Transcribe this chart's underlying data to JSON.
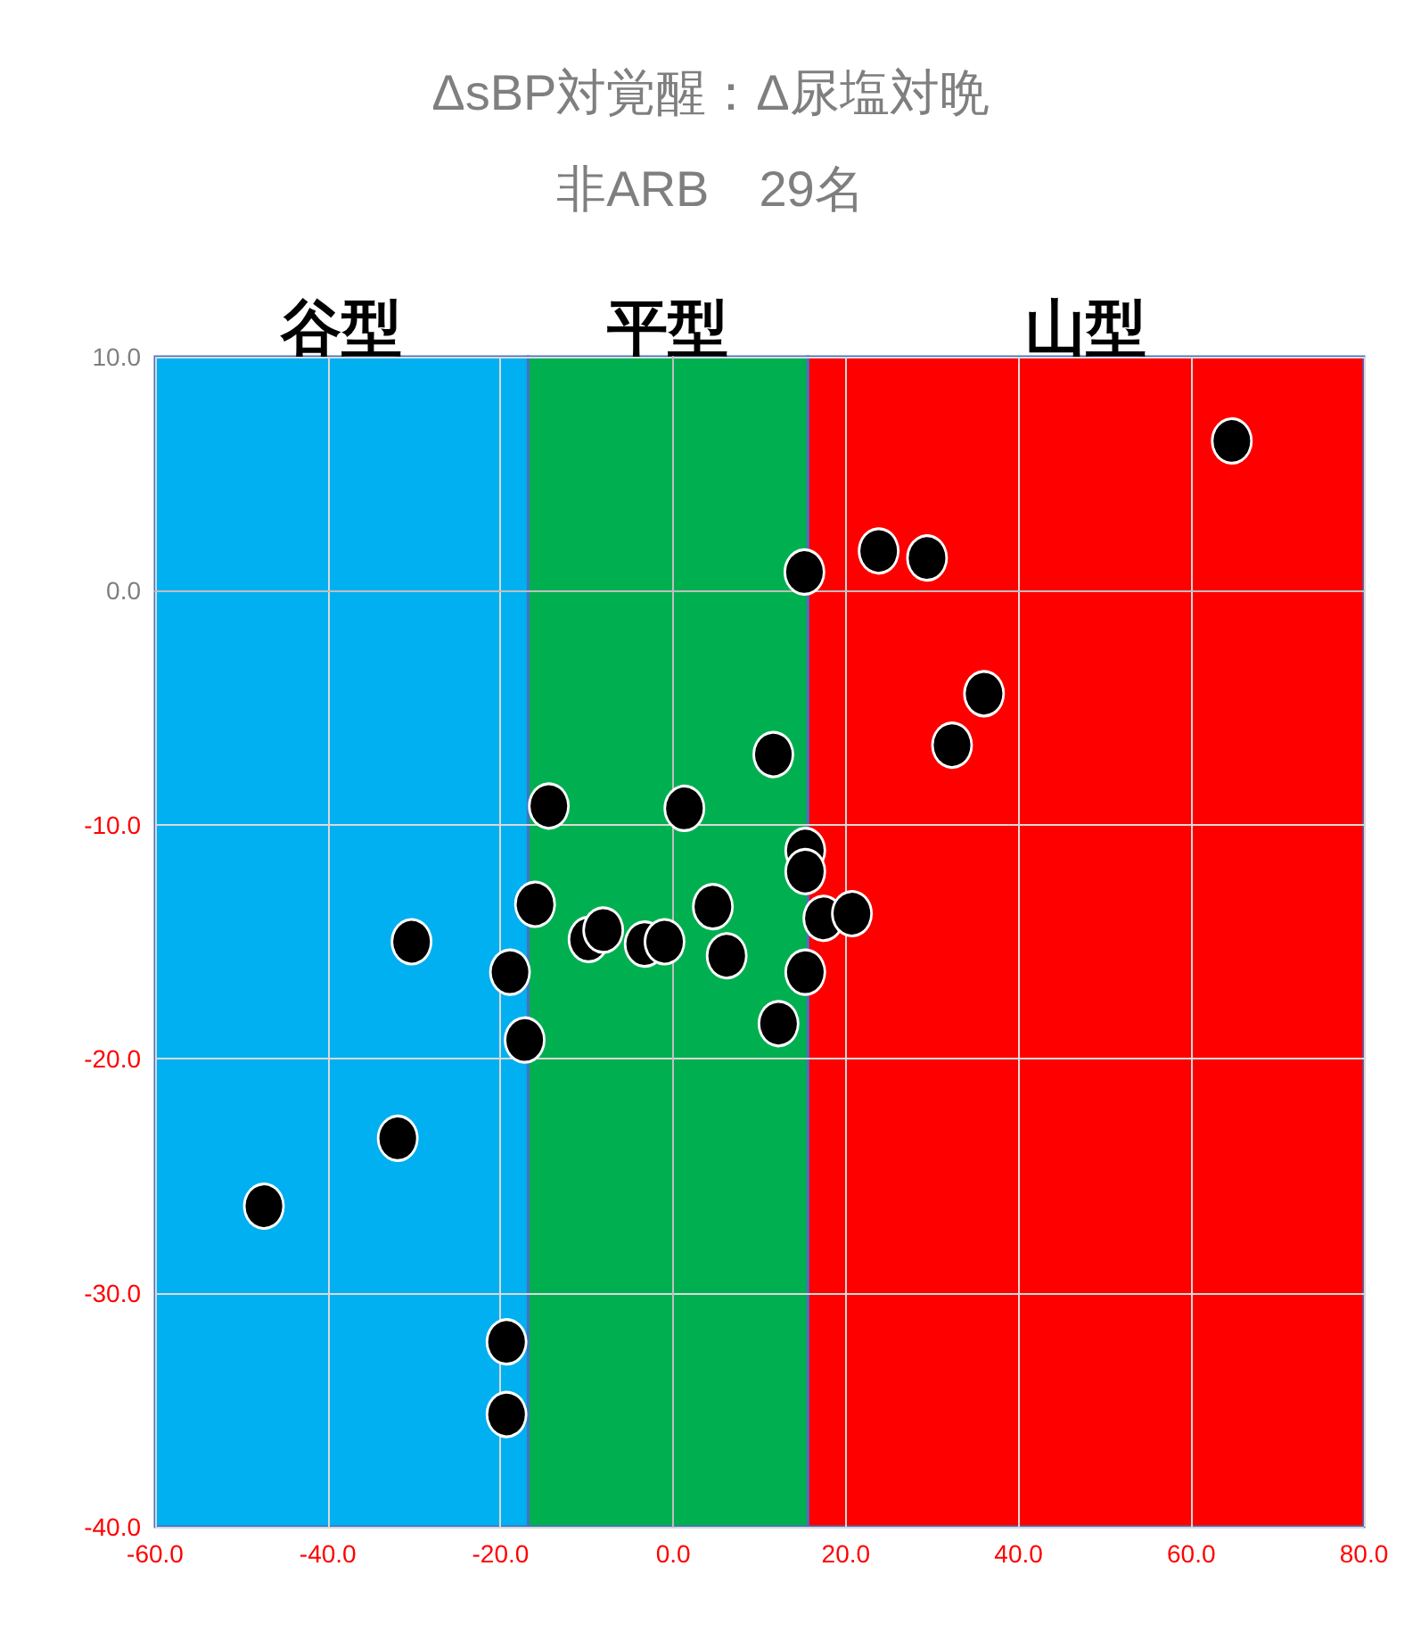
{
  "chart_data": {
    "type": "scatter",
    "title": "ΔsBP対覚醒：Δ尿塩対晩",
    "subtitle": "非ARB　29名",
    "series": [
      {
        "color": "#000000",
        "x": [
          64.7,
          23.8,
          29.4,
          15.2,
          36.0,
          32.3,
          11.6,
          -14.4,
          1.3,
          15.3,
          15.3,
          -16.0,
          4.6,
          17.4,
          20.7,
          -9.8,
          -8.1,
          -3.3,
          -1.0,
          -30.3,
          6.2,
          15.3,
          -18.9,
          12.2,
          -17.2,
          -31.9,
          -47.4,
          -19.3,
          -19.3
        ],
        "values": [
          6.4,
          1.7,
          1.4,
          0.8,
          -4.4,
          -6.6,
          -7.0,
          -9.2,
          -9.3,
          -11.1,
          -12.0,
          -13.4,
          -13.5,
          -14.0,
          -13.8,
          -14.9,
          -14.5,
          -15.1,
          -15.0,
          -15.0,
          -15.6,
          -16.3,
          -16.3,
          -18.5,
          -19.2,
          -23.4,
          -26.3,
          -32.1,
          -35.2
        ]
      }
    ],
    "bands": [
      {
        "axis": "x",
        "from": -60,
        "to": -16.8,
        "label": "谷型",
        "color": "#00b0f0"
      },
      {
        "axis": "x",
        "from": -16.8,
        "to": 15.6,
        "label": "平型",
        "color": "#00b050"
      },
      {
        "axis": "x",
        "from": 15.6,
        "to": 80,
        "label": "山型",
        "color": "#ff0000"
      }
    ],
    "xlim": [
      -60,
      80
    ],
    "xticks": [
      {
        "value": -60,
        "label": "-60.0"
      },
      {
        "value": -40,
        "label": "-40.0"
      },
      {
        "value": -20,
        "label": "-20.0"
      },
      {
        "value": 0,
        "label": "0.0"
      },
      {
        "value": 20,
        "label": "20.0"
      },
      {
        "value": 40,
        "label": "40.0"
      },
      {
        "value": 60,
        "label": "60.0"
      },
      {
        "value": 80,
        "label": "80.0"
      }
    ],
    "ylim": [
      -40,
      10
    ],
    "yticks": [
      {
        "value": -40,
        "label": "-40.0"
      },
      {
        "value": -30,
        "label": "-30.0"
      },
      {
        "value": -20,
        "label": "-20.0"
      },
      {
        "value": -10,
        "label": "-10.0"
      },
      {
        "value": 0,
        "label": "0.0"
      },
      {
        "value": 10,
        "label": "10.0"
      }
    ],
    "grid": true,
    "marker": "circle"
  }
}
